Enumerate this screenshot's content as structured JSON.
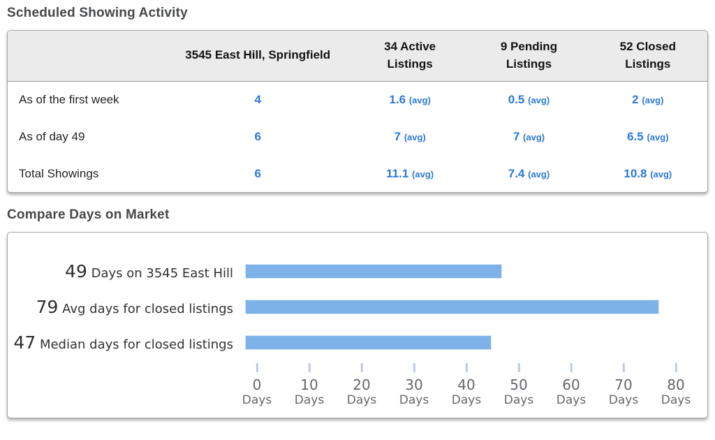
{
  "colors": {
    "accent_blue": "#2c78d4",
    "bar_fill": "#7cb2e8",
    "bar_border": "#d9e7f8",
    "tick_mark": "#bdc9e9",
    "header_bg": "#ebebeb",
    "heading_text": "#47484a"
  },
  "showing_activity": {
    "title": "Scheduled Showing Activity",
    "avg_label": "(avg)",
    "columns": {
      "subject": "3545 East Hill, Springfield",
      "active": {
        "line1": "34 Active",
        "line2": "Listings"
      },
      "pending": {
        "line1": "9 Pending",
        "line2": "Listings"
      },
      "closed": {
        "line1": "52 Closed",
        "line2": "Listings"
      }
    },
    "rows": [
      {
        "label": "As of the first week",
        "subject": "4",
        "active": "1.6",
        "pending": "0.5",
        "closed": "2"
      },
      {
        "label": "As of day 49",
        "subject": "6",
        "active": "7",
        "pending": "7",
        "closed": "6.5"
      },
      {
        "label": "Total Showings",
        "subject": "6",
        "active": "11.1",
        "pending": "7.4",
        "closed": "10.8"
      }
    ]
  },
  "days_on_market": {
    "title": "Compare Days on Market"
  },
  "chart_data": {
    "type": "bar",
    "orientation": "horizontal",
    "title": "Compare Days on Market",
    "categories": [
      "Days on 3545 East Hill",
      "Avg days for closed listings",
      "Median days for closed listings"
    ],
    "values": [
      49,
      79,
      47
    ],
    "xlim": [
      0,
      80
    ],
    "xticks": [
      0,
      10,
      20,
      30,
      40,
      50,
      60,
      70,
      80
    ],
    "xtick_suffix": "Days",
    "bar_color": "#7cb2e8",
    "grid": false,
    "legend": "none"
  }
}
